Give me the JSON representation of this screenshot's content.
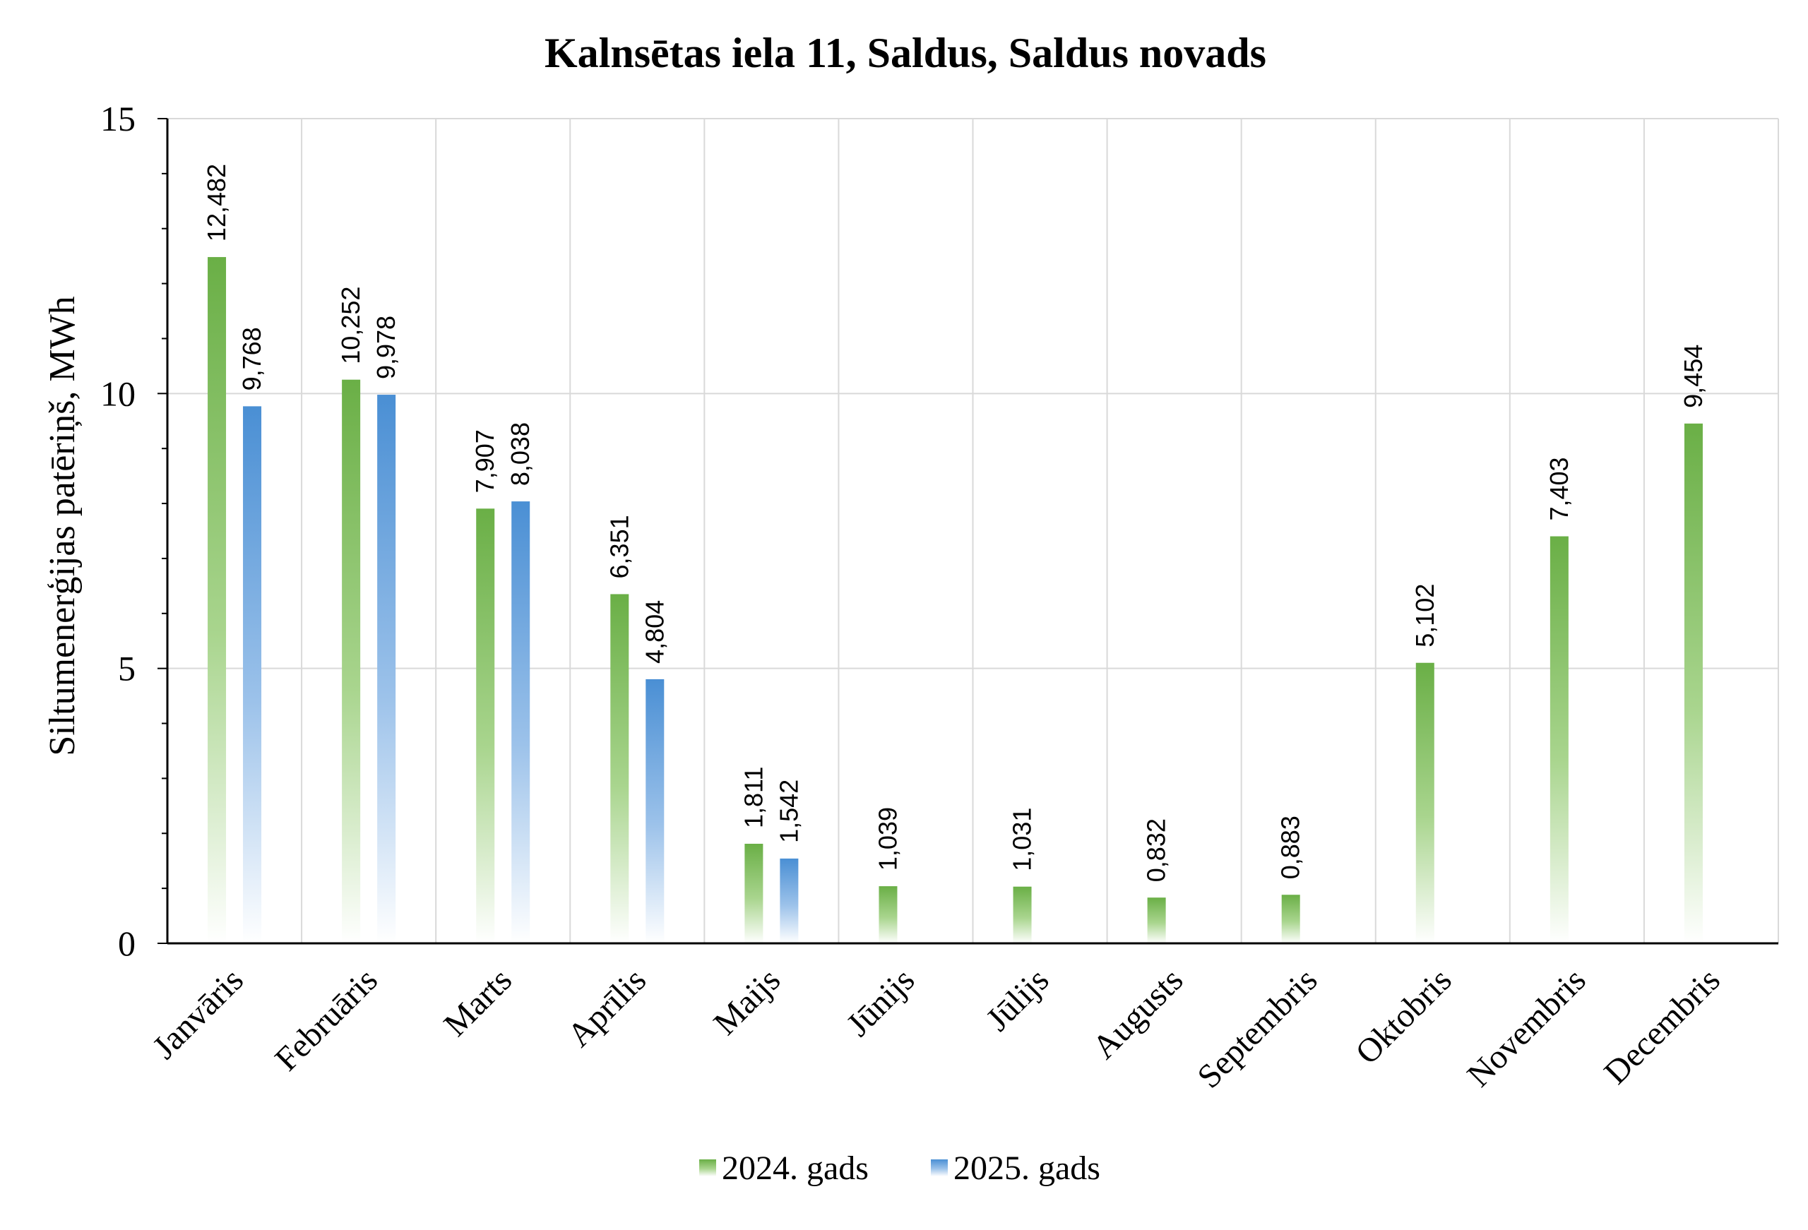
{
  "chart_data": {
    "type": "bar",
    "title": "Kalnsētas iela 11, Saldus, Saldus novads",
    "xlabel": "",
    "ylabel": "Siltumenerģijas patēriņš, MWh",
    "ylim": [
      0,
      15
    ],
    "yticks": [
      "0",
      "5",
      "10",
      "15"
    ],
    "grid": true,
    "legend_position": "bottom",
    "categories": [
      "Janvāris",
      "Februāris",
      "Marts",
      "Aprīlis",
      "Maijs",
      "Jūnijs",
      "Jūlijs",
      "Augusts",
      "Septembris",
      "Oktobris",
      "Novembris",
      "Decembris"
    ],
    "series": [
      {
        "name": "2024. gads",
        "color": "#6aaf46",
        "values": [
          12.482,
          10.252,
          7.907,
          6.351,
          1.811,
          1.039,
          1.031,
          0.832,
          0.883,
          5.102,
          7.403,
          9.454
        ],
        "labels": [
          "12,482",
          "10,252",
          "7,907",
          "6,351",
          "1,811",
          "1,039",
          "1,031",
          "0,832",
          "0,883",
          "5,102",
          "7,403",
          "9,454"
        ]
      },
      {
        "name": "2025. gads",
        "color": "#4a8fd4",
        "values": [
          9.768,
          9.978,
          8.038,
          4.804,
          1.542,
          null,
          null,
          null,
          null,
          null,
          null,
          null
        ],
        "labels": [
          "9,768",
          "9,978",
          "8,038",
          "4,804",
          "1,542",
          null,
          null,
          null,
          null,
          null,
          null,
          null
        ]
      }
    ]
  }
}
